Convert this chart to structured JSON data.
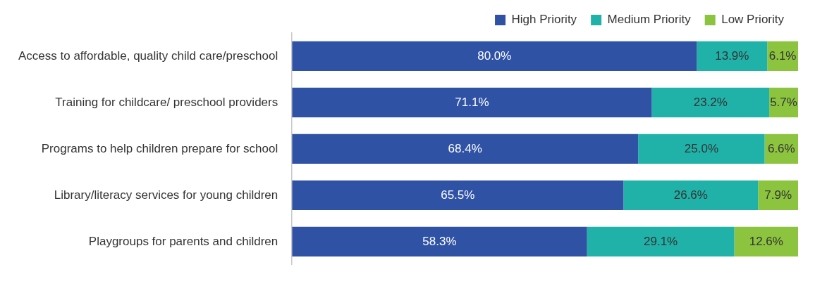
{
  "chart_data": {
    "type": "bar",
    "orientation": "horizontal",
    "stacked": true,
    "legend": "top right",
    "grid": false,
    "tick_labels": "y",
    "xlim": [
      0,
      100
    ],
    "categories": [
      "Access to affordable, quality child care/preschool",
      "Training for childcare/ preschool providers",
      "Programs to help children prepare for school",
      "Library/literacy services for young children",
      "Playgroups for parents and children"
    ],
    "series": [
      {
        "name": "High Priority",
        "color": "#2f52a5",
        "values": [
          80.0,
          71.1,
          68.4,
          65.5,
          58.3
        ],
        "value_labels": [
          "80.0%",
          "71.1%",
          "68.4%",
          "65.5%",
          "58.3%"
        ]
      },
      {
        "name": "Medium Priority",
        "color": "#20b2a8",
        "values": [
          13.9,
          23.2,
          25.0,
          26.6,
          29.1
        ],
        "value_labels": [
          "13.9%",
          "23.2%",
          "25.0%",
          "26.6%",
          "29.1%"
        ]
      },
      {
        "name": "Low Priority",
        "color": "#8cc43f",
        "values": [
          6.1,
          5.7,
          6.6,
          7.9,
          12.6
        ],
        "value_labels": [
          "6.1%",
          "5.7%",
          "6.6%",
          "7.9%",
          "12.6%"
        ]
      }
    ]
  }
}
